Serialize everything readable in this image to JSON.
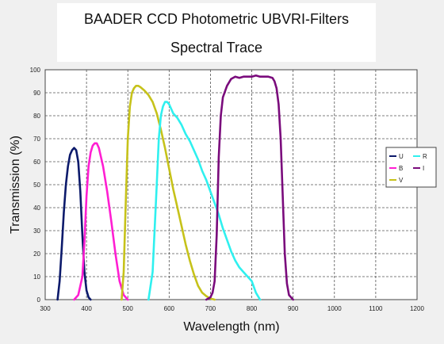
{
  "chart_data": {
    "type": "line",
    "title": "BAADER CCD Photometric UBVRI-Filters",
    "subtitle": "Spectral Trace",
    "xlabel": "Wavelength (nm)",
    "ylabel": "Transmission (%)",
    "xlim": [
      300,
      1200
    ],
    "ylim": [
      0,
      100
    ],
    "x_ticks": [
      300,
      400,
      500,
      600,
      700,
      800,
      900,
      1000,
      1100,
      1200
    ],
    "y_ticks": [
      0,
      10,
      20,
      30,
      40,
      50,
      60,
      70,
      80,
      90,
      100
    ],
    "grid": true,
    "legend_position": "right",
    "legend_order": [
      "U",
      "R",
      "B",
      "I",
      "V"
    ],
    "series": [
      {
        "name": "U",
        "color": "#0c1a6b",
        "x": [
          330,
          335,
          340,
          345,
          350,
          355,
          360,
          365,
          370,
          375,
          380,
          385,
          390,
          395,
          400,
          405,
          410
        ],
        "y": [
          0,
          8,
          22,
          38,
          50,
          58,
          63,
          65,
          66,
          65,
          60,
          47,
          28,
          12,
          4,
          1,
          0
        ]
      },
      {
        "name": "B",
        "color": "#ff1ed2",
        "x": [
          370,
          380,
          390,
          395,
          400,
          405,
          410,
          415,
          420,
          425,
          430,
          440,
          450,
          460,
          470,
          480,
          490,
          500
        ],
        "y": [
          0,
          2,
          10,
          25,
          45,
          58,
          64,
          67,
          68,
          68,
          66,
          58,
          47,
          34,
          20,
          8,
          2,
          0
        ]
      },
      {
        "name": "V",
        "color": "#c6c21a",
        "x": [
          485,
          490,
          495,
          500,
          505,
          510,
          515,
          520,
          525,
          530,
          540,
          550,
          560,
          570,
          580,
          590,
          600,
          610,
          620,
          630,
          640,
          650,
          660,
          670,
          680,
          690,
          700,
          710
        ],
        "y": [
          0,
          12,
          42,
          70,
          84,
          90,
          92,
          93,
          93,
          92.5,
          91,
          89,
          86,
          81,
          74,
          66,
          57,
          48,
          40,
          32,
          24,
          17,
          11,
          6,
          3,
          1.5,
          0.5,
          0
        ]
      },
      {
        "name": "R",
        "color": "#2ff0ef",
        "x": [
          550,
          560,
          570,
          575,
          580,
          585,
          590,
          595,
          600,
          610,
          620,
          630,
          640,
          650,
          660,
          670,
          680,
          690,
          700,
          710,
          720,
          730,
          740,
          750,
          760,
          770,
          780,
          790,
          800,
          810,
          820
        ],
        "y": [
          0,
          12,
          50,
          70,
          80,
          84,
          86,
          86,
          85,
          81,
          79,
          76,
          72,
          69,
          65,
          61,
          56,
          52,
          47,
          42,
          37,
          31,
          26,
          21,
          17,
          14,
          12,
          10,
          8,
          3,
          0
        ]
      },
      {
        "name": "I",
        "color": "#7a0b7c",
        "x": [
          690,
          700,
          705,
          710,
          715,
          720,
          725,
          730,
          740,
          750,
          760,
          770,
          780,
          790,
          800,
          810,
          820,
          830,
          840,
          850,
          855,
          860,
          865,
          870,
          875,
          880,
          885,
          890,
          900
        ],
        "y": [
          0,
          1,
          3,
          8,
          28,
          62,
          80,
          88,
          93,
          96,
          97,
          96.5,
          97,
          97,
          97,
          97.5,
          97,
          97,
          97,
          96.5,
          95,
          92,
          85,
          70,
          45,
          20,
          7,
          2,
          0
        ]
      }
    ]
  }
}
